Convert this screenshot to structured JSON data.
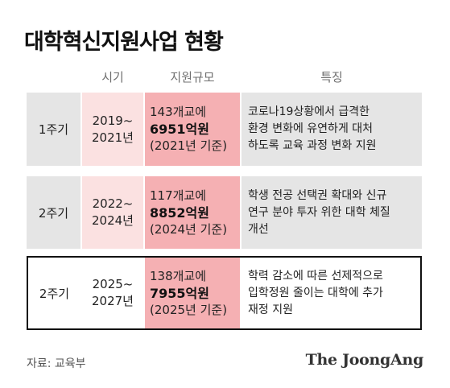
{
  "title": "대학혁신지원사업 현황",
  "headers": {
    "period": "시기",
    "budget": "지원규모",
    "feature": "특징"
  },
  "rows": [
    {
      "phase": "1주기",
      "period": [
        "2019~",
        "2021년"
      ],
      "schools": "143개교에",
      "amount": "6951억원",
      "basis": "(2021년 기준)",
      "feature": [
        "코로나19상황에서 급격한",
        "환경 변화에 유연하게 대처",
        "하도록 교육 과정 변화 지원"
      ]
    },
    {
      "phase": "2주기",
      "period": [
        "2022~",
        "2024년"
      ],
      "schools": "117개교에",
      "amount": "8852억원",
      "basis": "(2024년 기준)",
      "feature": [
        "학생 전공 선택권 확대와 신규",
        "연구 분야 투자 위한 대학 체질",
        "개선"
      ]
    },
    {
      "phase": "2주기",
      "period": [
        "2025~",
        "2027년"
      ],
      "schools": "138개교에",
      "amount": "7955억원",
      "basis": "(2025년 기준)",
      "feature": [
        "학력 감소에 따른 선제적으로",
        "입학정원 줄이는 대학에 추가",
        "재정 지원"
      ]
    }
  ],
  "source": "자료: 교육부",
  "logo": "The JoongAng",
  "colors": {
    "phase_bg": "#e5e5e5",
    "period_bg": "#fbe1e1",
    "budget_bg": "#f5b0b3",
    "highlight_border": "#111111"
  }
}
